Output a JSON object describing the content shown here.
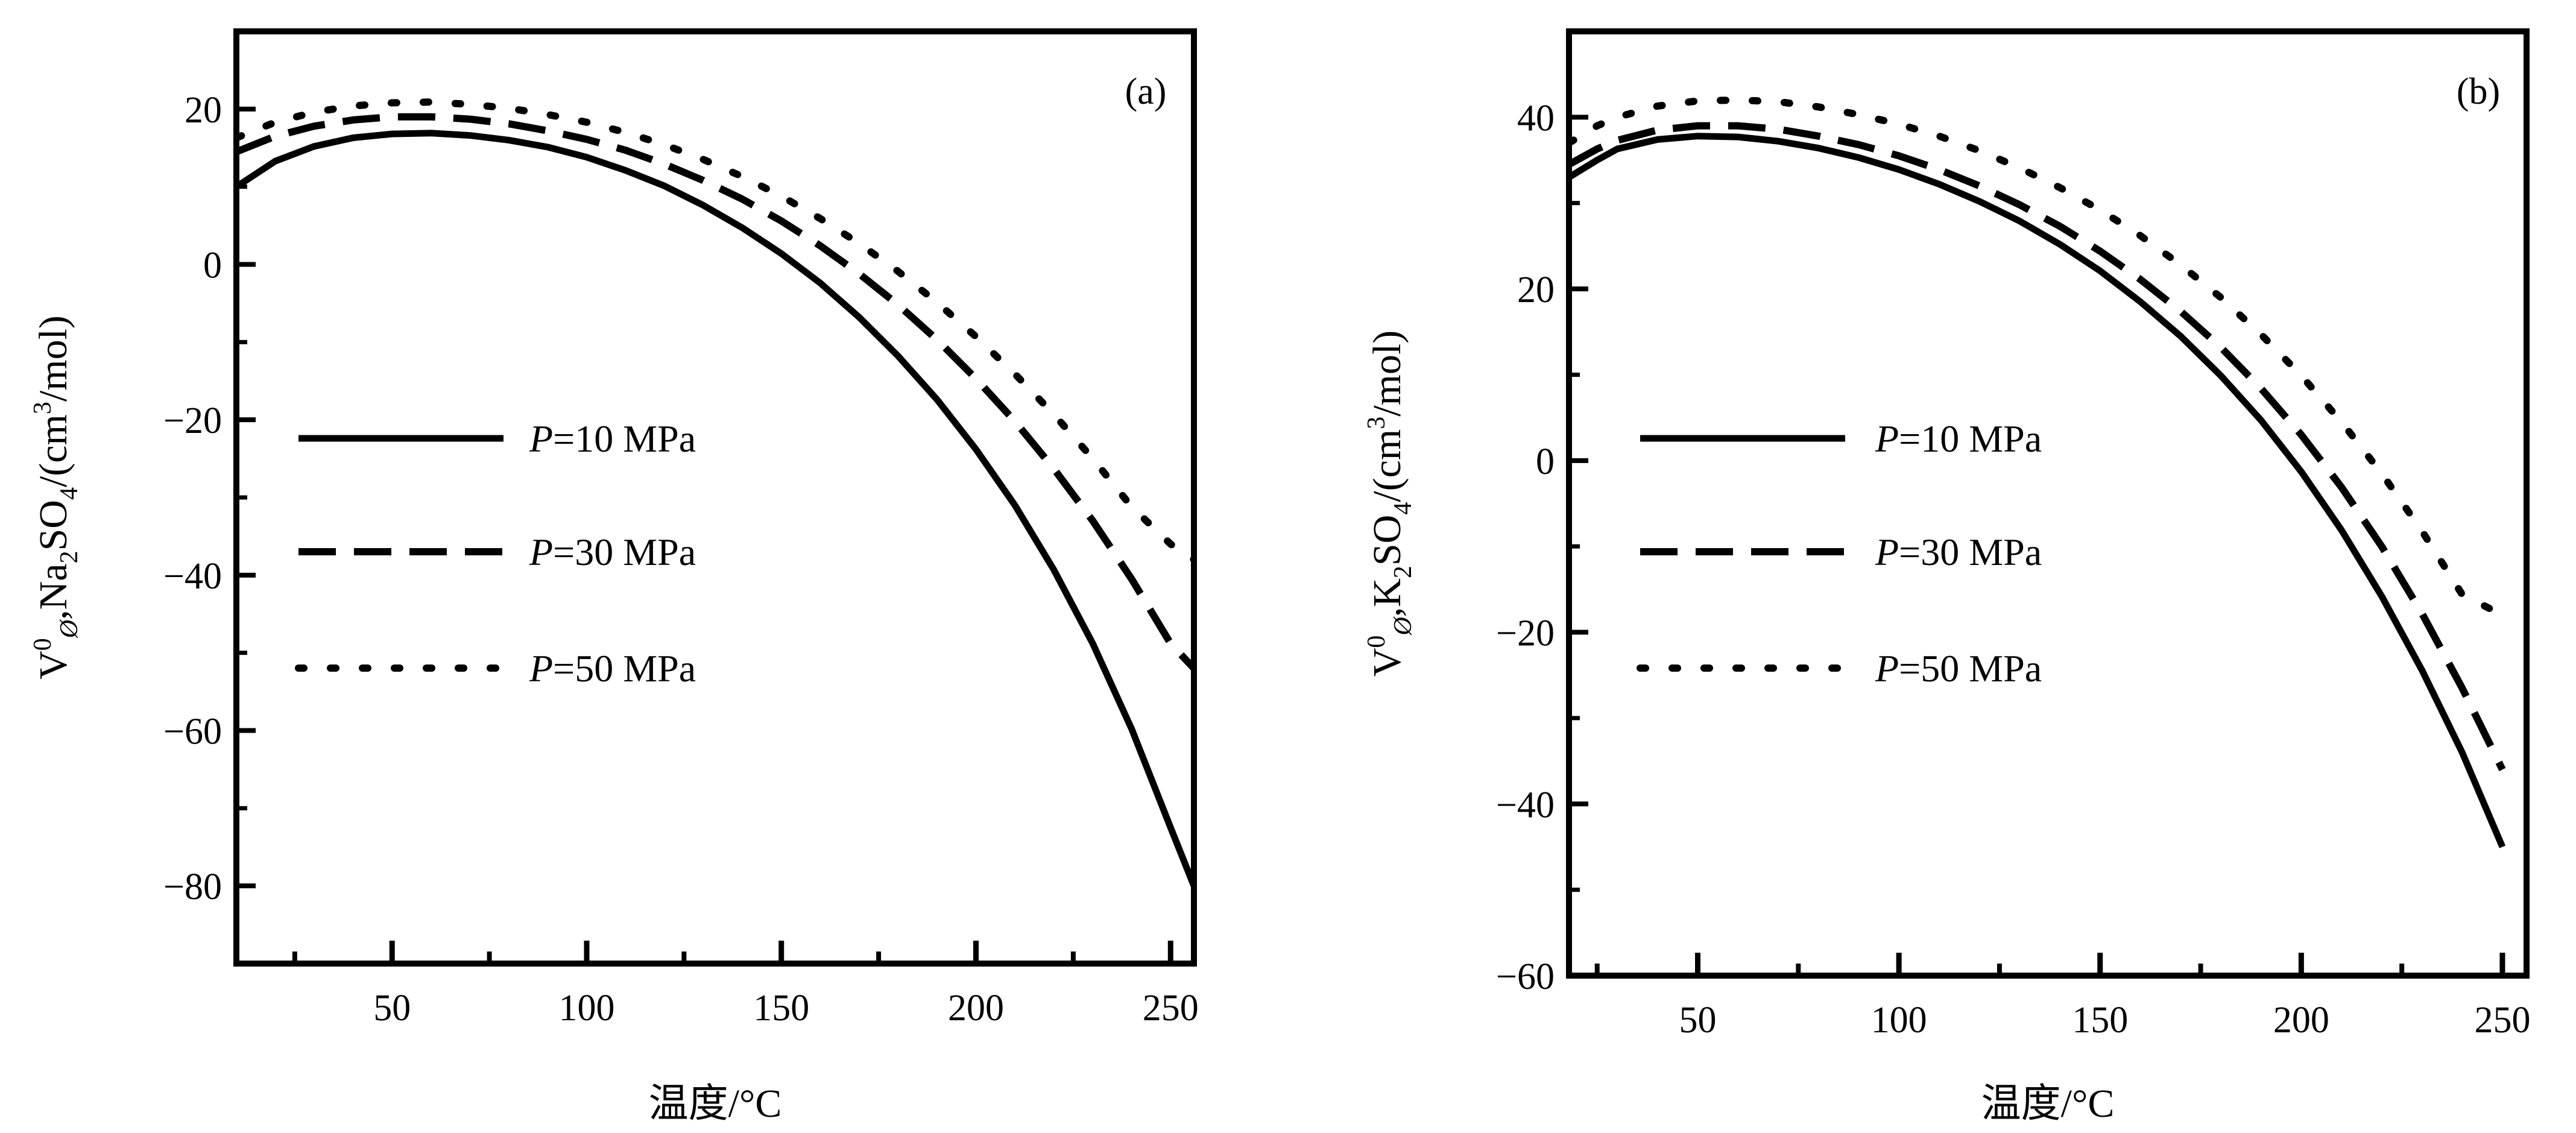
{
  "chart_data": [
    {
      "type": "line",
      "panel_label": "(a)",
      "xlabel": "温度/°C",
      "ylabel": {
        "V": "V",
        "sup": "0",
        "sub": "Ø",
        "mid1": ",Na",
        "sub2": "2",
        "mid2": "SO",
        "sub3": "4",
        "unit_pre": "/(cm",
        "unit_sup": "3",
        "unit_post": "/mol)"
      },
      "xlim": [
        10,
        256
      ],
      "ylim": [
        -90,
        30
      ],
      "xticks": [
        50,
        100,
        150,
        200,
        250
      ],
      "yticks": [
        20,
        0,
        -20,
        -40,
        -60,
        -80
      ],
      "legend_position": "center-left",
      "grid": false,
      "series": [
        {
          "name_var": "P",
          "name_rest": "=10 MPa",
          "style": "solid",
          "x": [
            10,
            20,
            30,
            40,
            50,
            60,
            70,
            80,
            90,
            100,
            110,
            120,
            130,
            140,
            150,
            160,
            170,
            180,
            190,
            200,
            210,
            220,
            230,
            240,
            250,
            256
          ],
          "y": [
            10,
            13.3,
            15.2,
            16.3,
            16.8,
            16.9,
            16.6,
            16.0,
            15.1,
            13.8,
            12.1,
            10.1,
            7.6,
            4.7,
            1.4,
            -2.4,
            -6.8,
            -11.8,
            -17.4,
            -23.8,
            -31,
            -39.3,
            -48.8,
            -59.8,
            -72.5,
            -80
          ]
        },
        {
          "name_var": "P",
          "name_rest": "=30 MPa",
          "style": "dashed",
          "x": [
            10,
            20,
            30,
            40,
            50,
            60,
            70,
            80,
            90,
            100,
            110,
            120,
            130,
            140,
            150,
            160,
            170,
            180,
            190,
            200,
            210,
            220,
            230,
            240,
            250,
            256
          ],
          "y": [
            14.5,
            16.5,
            17.8,
            18.6,
            19.0,
            19.0,
            18.7,
            18.1,
            17.2,
            16.1,
            14.7,
            12.9,
            10.8,
            8.4,
            5.6,
            2.4,
            -1.2,
            -5.2,
            -9.7,
            -14.7,
            -20.2,
            -26.3,
            -33,
            -40.5,
            -48.8,
            -52
          ]
        },
        {
          "name_var": "P",
          "name_rest": "=50 MPa",
          "style": "dotted",
          "x": [
            10,
            20,
            30,
            40,
            50,
            60,
            70,
            80,
            90,
            100,
            110,
            120,
            130,
            140,
            150,
            160,
            170,
            180,
            190,
            200,
            210,
            220,
            230,
            240,
            250,
            256
          ],
          "y": [
            16.3,
            18.3,
            19.6,
            20.4,
            20.8,
            20.9,
            20.6,
            20.1,
            19.3,
            18.3,
            17.0,
            15.4,
            13.5,
            11.3,
            8.8,
            5.9,
            2.7,
            -0.9,
            -4.9,
            -9.3,
            -14.1,
            -19.3,
            -25,
            -31.2,
            -36,
            -38
          ]
        }
      ]
    },
    {
      "type": "line",
      "panel_label": "(b)",
      "xlabel": "温度/°C",
      "ylabel": {
        "V": "V",
        "sup": "0",
        "sub": "Ø",
        "mid1": ",K",
        "sub2": "2",
        "mid2": "SO",
        "sub3": "4",
        "unit_pre": "/(cm",
        "unit_sup": "3",
        "unit_post": "/mol)"
      },
      "xlim": [
        18,
        256
      ],
      "ylim": [
        -60,
        50
      ],
      "xticks": [
        50,
        100,
        150,
        200,
        250
      ],
      "yticks": [
        40,
        20,
        0,
        -20,
        -40,
        -60
      ],
      "legend_position": "center-left",
      "grid": false,
      "series": [
        {
          "name_var": "P",
          "name_rest": "=10 MPa",
          "style": "solid",
          "x": [
            18,
            25,
            30,
            40,
            50,
            60,
            70,
            80,
            90,
            100,
            110,
            120,
            130,
            140,
            150,
            160,
            170,
            180,
            190,
            200,
            210,
            220,
            230,
            240,
            250
          ],
          "y": [
            33,
            35,
            36.3,
            37.4,
            37.8,
            37.7,
            37.2,
            36.4,
            35.3,
            33.9,
            32.2,
            30.2,
            27.9,
            25.2,
            22.1,
            18.5,
            14.5,
            9.9,
            4.7,
            -1.3,
            -8.1,
            -15.8,
            -24.4,
            -34,
            -45
          ]
        },
        {
          "name_var": "P",
          "name_rest": "=30 MPa",
          "style": "dashed",
          "x": [
            18,
            25,
            30,
            40,
            50,
            60,
            70,
            80,
            90,
            100,
            110,
            120,
            130,
            140,
            150,
            160,
            170,
            180,
            190,
            200,
            210,
            220,
            230,
            240,
            250
          ],
          "y": [
            34.5,
            36.3,
            37.3,
            38.5,
            39.0,
            39.0,
            38.6,
            37.8,
            36.8,
            35.5,
            33.9,
            32.0,
            29.8,
            27.3,
            24.4,
            21.1,
            17.4,
            13.2,
            8.4,
            3,
            -3.1,
            -10,
            -17.8,
            -26.5,
            -36
          ]
        },
        {
          "name_var": "P",
          "name_rest": "=50 MPa",
          "style": "dotted",
          "x": [
            18,
            25,
            30,
            40,
            50,
            60,
            70,
            80,
            90,
            100,
            110,
            120,
            130,
            140,
            150,
            160,
            170,
            180,
            190,
            200,
            210,
            220,
            230,
            240,
            250
          ],
          "y": [
            37,
            39,
            40.0,
            41.3,
            41.9,
            42.0,
            41.8,
            41.2,
            40.3,
            39.2,
            37.8,
            36.1,
            34.1,
            31.8,
            29.2,
            26.2,
            22.8,
            19.0,
            14.7,
            9.9,
            4.5,
            -1.5,
            -8.2,
            -15.6,
            -18
          ]
        }
      ]
    }
  ]
}
